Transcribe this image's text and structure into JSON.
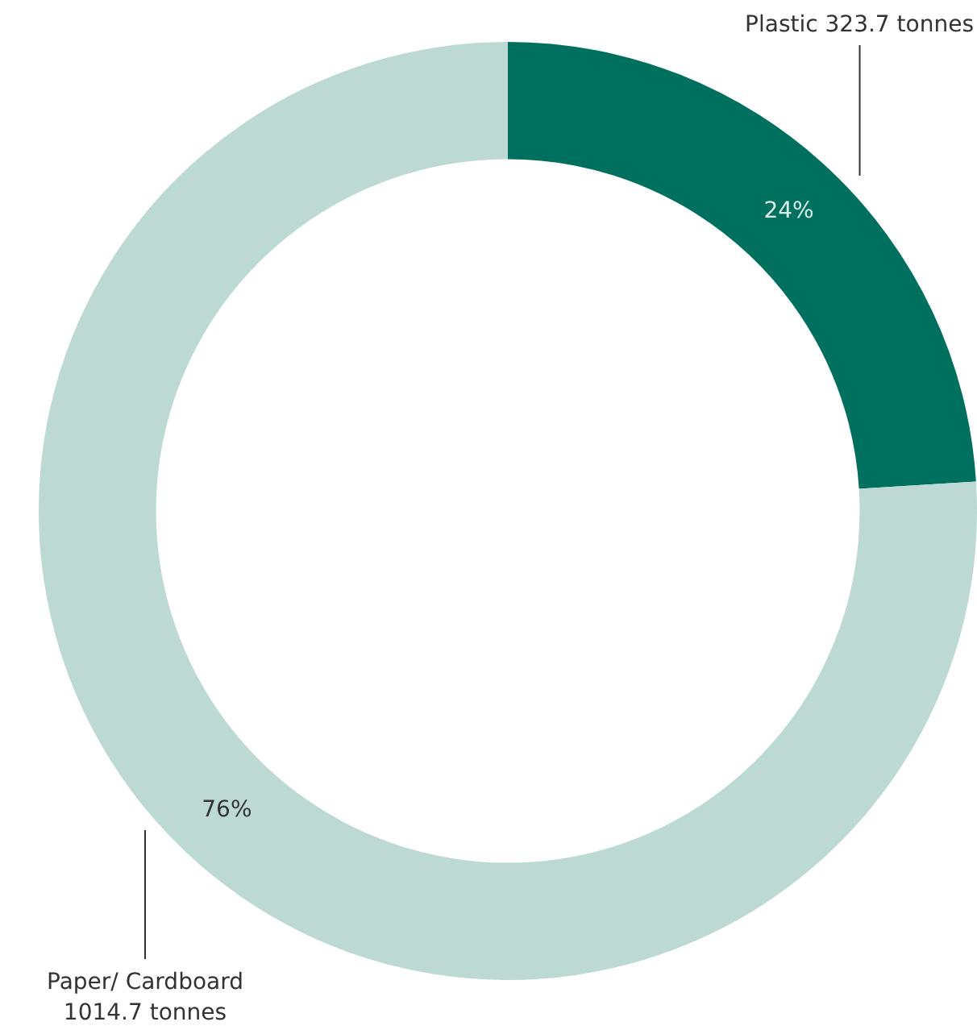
{
  "chart_data": {
    "type": "donut",
    "categories": [
      "Plastic 323.7 tonnes",
      "Paper/ Cardboard 1014.7 tonnes"
    ],
    "values": [
      24,
      76
    ],
    "value_labels": [
      "24%",
      "76%"
    ],
    "colors": [
      "#00705e",
      "#bcd9d4"
    ],
    "legend": false
  }
}
